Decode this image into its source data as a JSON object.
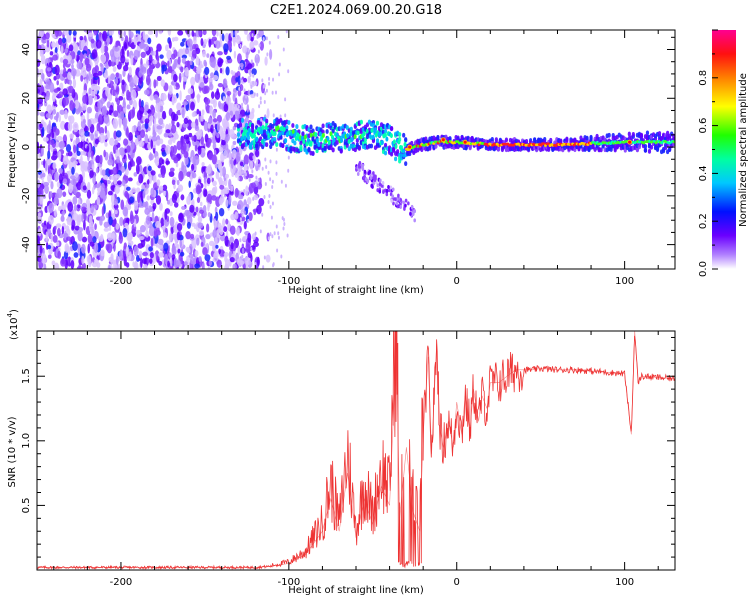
{
  "title": "C2E1.2024.069.00.20.G18",
  "chart_data": [
    {
      "type": "heatmap",
      "title": "C2E1.2024.069.00.20.G18",
      "xlabel": "Height of straight line (km)",
      "ylabel": "Frequency (Hz)",
      "xlim": [
        -250,
        130
      ],
      "ylim": [
        -50,
        48
      ],
      "x_ticks": [
        "-200",
        "-100",
        "0",
        "100"
      ],
      "y_ticks": [
        "40",
        "20",
        "0",
        "-20",
        "-40"
      ],
      "colorbar": {
        "label": "Normalized spectral amplitude",
        "range": [
          0,
          1
        ],
        "ticks": [
          "0.0",
          "0.2",
          "0.4",
          "0.6",
          "0.8"
        ],
        "colors": [
          "#ffffff",
          "#7a00ff",
          "#0000ff",
          "#00ffff",
          "#00ff00",
          "#ffff00",
          "#ff8000",
          "#ff0000",
          "#ff0090"
        ]
      },
      "ridge": {
        "x": [
          -130,
          -110,
          -90,
          -70,
          -50,
          -40,
          -35,
          -30,
          -20,
          -10,
          0,
          20,
          60,
          100,
          130
        ],
        "y": [
          5,
          6,
          3,
          4,
          5,
          3,
          0,
          -1,
          1,
          2,
          2,
          1,
          1,
          2,
          2
        ]
      },
      "grid": false
    },
    {
      "type": "line",
      "xlabel": "Height of straight line (km)",
      "ylabel": "SNR (10 * v/v)",
      "exponent_label": "(x10",
      "exponent_power": "4",
      "xlim": [
        -250,
        130
      ],
      "ylim": [
        0,
        1.85
      ],
      "x_ticks": [
        "-200",
        "-100",
        "0",
        "100"
      ],
      "y_ticks": [
        "0.5",
        "1.0",
        "1.5"
      ],
      "color": "#ee3333",
      "series": [
        {
          "x": [
            -250,
            -200,
            -150,
            -120,
            -110,
            -100,
            -90,
            -80,
            -75,
            -70,
            -65,
            -60,
            -55,
            -50,
            -45,
            -40,
            -36,
            -34,
            -30,
            -26,
            -22,
            -20,
            -17,
            -15,
            -12,
            -10,
            -8,
            -5,
            -2,
            0,
            3,
            5,
            8,
            10,
            13,
            15,
            18,
            20,
            25,
            30,
            35,
            40,
            45,
            50,
            60,
            70,
            80,
            90,
            100,
            104,
            106,
            108,
            110,
            120,
            130
          ],
          "y": [
            0.02,
            0.02,
            0.02,
            0.02,
            0.03,
            0.05,
            0.12,
            0.3,
            0.55,
            0.3,
            0.75,
            0.25,
            0.55,
            0.35,
            0.65,
            0.5,
            1.73,
            0.4,
            0.95,
            0.45,
            0.3,
            1.05,
            1.65,
            0.9,
            1.75,
            1.1,
            0.95,
            1.15,
            0.95,
            1.3,
            1.05,
            1.35,
            1.1,
            1.4,
            1.15,
            1.35,
            1.25,
            1.45,
            1.45,
            1.5,
            1.55,
            1.55,
            1.55,
            1.56,
            1.55,
            1.55,
            1.54,
            1.53,
            1.52,
            1.05,
            1.85,
            1.45,
            1.5,
            1.49,
            1.48
          ]
        }
      ],
      "grid": false
    }
  ]
}
